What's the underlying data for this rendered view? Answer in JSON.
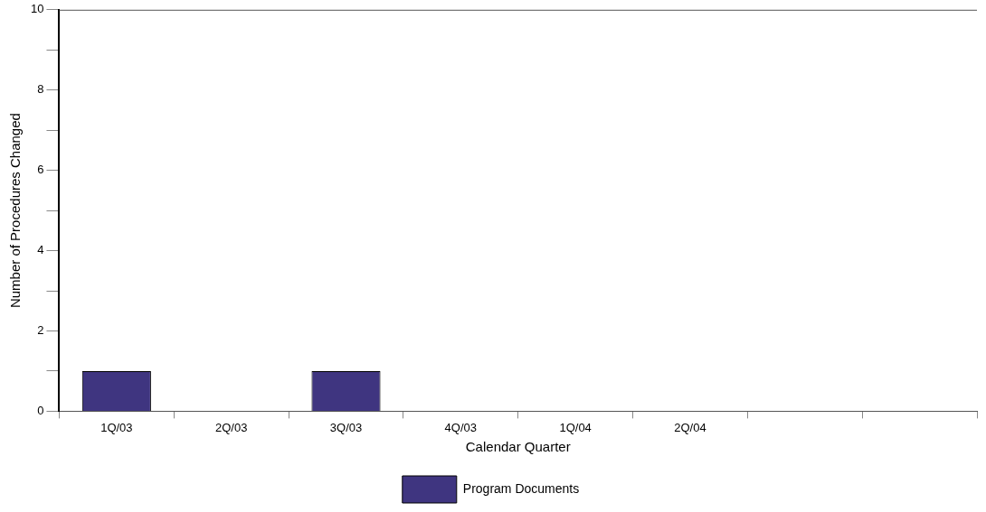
{
  "chart_data": {
    "type": "bar",
    "xlabel": "Calendar Quarter",
    "ylabel": "Number of Procedures Changed",
    "categories": [
      "1Q/03",
      "2Q/03",
      "3Q/03",
      "4Q/03",
      "1Q/04",
      "2Q/04",
      null,
      null
    ],
    "series": [
      {
        "name": "Program Documents",
        "color": "#3f3580",
        "values": [
          1,
          0,
          1,
          0,
          0,
          0,
          0,
          0
        ]
      }
    ],
    "ylim": [
      0,
      10
    ],
    "yticks": [
      0,
      {
        "value": 1,
        "label": null
      },
      2,
      {
        "value": 3,
        "label": null
      },
      4,
      {
        "value": 5,
        "label": null
      },
      6,
      {
        "value": 7,
        "label": null
      },
      8,
      {
        "value": 9,
        "label": null
      },
      10
    ],
    "grid": false,
    "legend": "bottom"
  }
}
